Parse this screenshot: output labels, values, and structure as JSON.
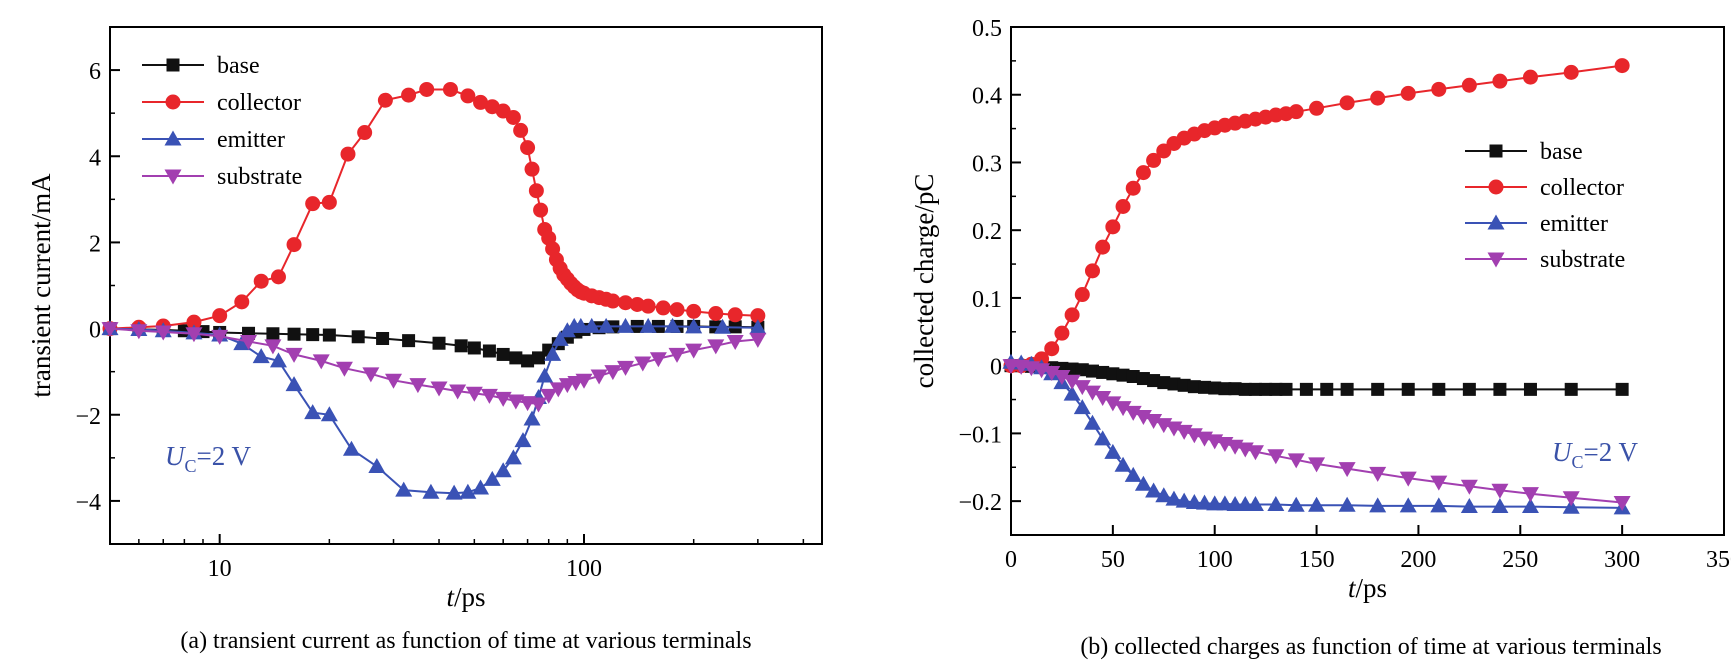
{
  "colors": {
    "base": "#111111",
    "collector": "#e8262b",
    "emitter": "#3a52b5",
    "substrate": "#a23fb0",
    "annotation": "#3a52a8"
  },
  "chart_data": [
    {
      "type": "line",
      "panel": "a",
      "caption": "(a) transient current as function of time at various terminals",
      "xlabel_italic": "t",
      "xlabel_unit": "/ps",
      "ylabel": "transient current/mA",
      "x_scale": "log",
      "xlim": [
        5,
        450
      ],
      "ylim": [
        -5,
        7
      ],
      "x_ticks": [
        10,
        100
      ],
      "x_tick_labels": [
        "10",
        "100"
      ],
      "y_ticks": [
        -4,
        -2,
        0,
        2,
        4,
        6
      ],
      "y_tick_labels": [
        "−4",
        "−2",
        "0",
        "2",
        "4",
        "6"
      ],
      "legend_position": "top-left",
      "annotation": {
        "main": "U",
        "sub": "C",
        "rest": "=2 V"
      },
      "series": [
        {
          "name": "base",
          "marker": "square",
          "x": [
            5,
            6,
            7,
            8,
            9,
            10,
            12,
            14,
            16,
            18,
            20,
            24,
            28,
            33,
            40,
            46,
            50,
            55,
            60,
            65,
            70,
            75,
            80,
            85,
            90,
            95,
            100,
            110,
            120,
            140,
            160,
            180,
            200,
            230,
            260,
            300
          ],
          "y": [
            0,
            -0.02,
            -0.03,
            -0.05,
            -0.07,
            -0.09,
            -0.11,
            -0.12,
            -0.13,
            -0.14,
            -0.15,
            -0.19,
            -0.23,
            -0.28,
            -0.34,
            -0.4,
            -0.45,
            -0.52,
            -0.6,
            -0.68,
            -0.75,
            -0.68,
            -0.5,
            -0.35,
            -0.2,
            -0.08,
            -0.02,
            0.02,
            0.04,
            0.05,
            0.05,
            0.05,
            0.05,
            0.04,
            0.04,
            0.03
          ]
        },
        {
          "name": "collector",
          "marker": "circle",
          "x": [
            5,
            6,
            7,
            8.5,
            10,
            11.5,
            13,
            14.5,
            16,
            18,
            20,
            22.5,
            25,
            28.5,
            33,
            37,
            43,
            48,
            52,
            56,
            60,
            64,
            67,
            70,
            72,
            74,
            76,
            78,
            80,
            82,
            84,
            86,
            88,
            90,
            92,
            94,
            96,
            98,
            100,
            105,
            110,
            115,
            120,
            130,
            140,
            150,
            165,
            180,
            200,
            230,
            260,
            300
          ],
          "y": [
            0,
            0.03,
            0.06,
            0.15,
            0.3,
            0.62,
            1.1,
            1.2,
            1.95,
            2.9,
            2.93,
            4.05,
            4.55,
            5.3,
            5.42,
            5.55,
            5.55,
            5.4,
            5.25,
            5.15,
            5.05,
            4.9,
            4.6,
            4.2,
            3.7,
            3.2,
            2.75,
            2.3,
            2.1,
            1.85,
            1.6,
            1.4,
            1.25,
            1.15,
            1.05,
            0.97,
            0.9,
            0.85,
            0.82,
            0.76,
            0.72,
            0.68,
            0.64,
            0.6,
            0.56,
            0.52,
            0.48,
            0.44,
            0.4,
            0.35,
            0.32,
            0.3
          ]
        },
        {
          "name": "emitter",
          "marker": "triangle-up",
          "x": [
            5,
            6,
            7,
            8.5,
            10,
            11.5,
            13,
            14.5,
            16,
            18,
            20,
            23,
            27,
            32,
            38,
            44,
            48,
            52,
            56,
            60,
            64,
            68,
            72,
            75,
            78,
            82,
            86,
            90,
            94,
            98,
            105,
            115,
            130,
            150,
            175,
            200,
            240,
            300
          ],
          "y": [
            0,
            -0.02,
            -0.05,
            -0.1,
            -0.15,
            -0.35,
            -0.65,
            -0.75,
            -1.3,
            -1.95,
            -2.0,
            -2.8,
            -3.2,
            -3.75,
            -3.8,
            -3.82,
            -3.8,
            -3.7,
            -3.5,
            -3.3,
            -3.0,
            -2.6,
            -2.1,
            -1.6,
            -1.1,
            -0.6,
            -0.25,
            -0.05,
            0.05,
            0.05,
            0.05,
            0.05,
            0.05,
            0.05,
            0.05,
            0.04,
            0.03,
            0.02
          ]
        },
        {
          "name": "substrate",
          "marker": "triangle-down",
          "x": [
            5,
            6,
            7,
            8.5,
            10,
            12,
            14,
            16,
            19,
            22,
            26,
            30,
            35,
            40,
            45,
            50,
            55,
            60,
            65,
            70,
            75,
            80,
            85,
            90,
            95,
            100,
            110,
            120,
            130,
            145,
            160,
            180,
            200,
            230,
            260,
            300
          ],
          "y": [
            0,
            -0.05,
            -0.08,
            -0.12,
            -0.18,
            -0.3,
            -0.4,
            -0.6,
            -0.75,
            -0.92,
            -1.05,
            -1.2,
            -1.3,
            -1.38,
            -1.45,
            -1.5,
            -1.55,
            -1.62,
            -1.68,
            -1.72,
            -1.75,
            -1.55,
            -1.4,
            -1.3,
            -1.25,
            -1.2,
            -1.1,
            -1.0,
            -0.9,
            -0.8,
            -0.7,
            -0.6,
            -0.5,
            -0.4,
            -0.3,
            -0.25
          ]
        }
      ]
    },
    {
      "type": "line",
      "panel": "b",
      "caption": "(b) collected charges as function of time at various terminals",
      "xlabel_italic": "t",
      "xlabel_unit": "/ps",
      "ylabel": "collected charge/pC",
      "x_scale": "linear",
      "xlim": [
        0,
        350
      ],
      "ylim": [
        -0.25,
        0.5
      ],
      "x_ticks": [
        0,
        50,
        100,
        150,
        200,
        250,
        300,
        350
      ],
      "x_tick_labels": [
        "0",
        "50",
        "100",
        "150",
        "200",
        "250",
        "300",
        "350"
      ],
      "y_ticks": [
        -0.2,
        -0.1,
        0,
        0.1,
        0.2,
        0.3,
        0.4,
        0.5
      ],
      "y_tick_labels": [
        "−0.2",
        "−0.1",
        "0",
        "0.1",
        "0.2",
        "0.3",
        "0.4",
        "0.5"
      ],
      "legend_position": "right",
      "annotation": {
        "main": "U",
        "sub": "C",
        "rest": "=2 V"
      },
      "series": [
        {
          "name": "base",
          "marker": "square",
          "x": [
            0,
            5,
            10,
            15,
            20,
            25,
            30,
            35,
            40,
            45,
            50,
            55,
            60,
            65,
            70,
            75,
            80,
            85,
            90,
            95,
            100,
            105,
            110,
            115,
            120,
            125,
            130,
            135,
            145,
            155,
            165,
            180,
            195,
            210,
            225,
            240,
            255,
            275,
            300
          ],
          "y": [
            0,
            0,
            -0.001,
            -0.002,
            -0.003,
            -0.004,
            -0.005,
            -0.006,
            -0.008,
            -0.01,
            -0.012,
            -0.014,
            -0.016,
            -0.019,
            -0.022,
            -0.025,
            -0.027,
            -0.029,
            -0.031,
            -0.032,
            -0.033,
            -0.034,
            -0.034,
            -0.035,
            -0.035,
            -0.035,
            -0.035,
            -0.035,
            -0.035,
            -0.035,
            -0.035,
            -0.035,
            -0.035,
            -0.035,
            -0.035,
            -0.035,
            -0.035,
            -0.035,
            -0.035
          ]
        },
        {
          "name": "collector",
          "marker": "circle",
          "x": [
            0,
            5,
            10,
            15,
            20,
            25,
            30,
            35,
            40,
            45,
            50,
            55,
            60,
            65,
            70,
            75,
            80,
            85,
            90,
            95,
            100,
            105,
            110,
            115,
            120,
            125,
            130,
            135,
            140,
            150,
            165,
            180,
            195,
            210,
            225,
            240,
            255,
            275,
            300
          ],
          "y": [
            0,
            0,
            0.002,
            0.01,
            0.025,
            0.048,
            0.075,
            0.105,
            0.14,
            0.175,
            0.205,
            0.235,
            0.262,
            0.285,
            0.303,
            0.317,
            0.328,
            0.336,
            0.342,
            0.347,
            0.351,
            0.355,
            0.358,
            0.361,
            0.364,
            0.367,
            0.37,
            0.372,
            0.375,
            0.38,
            0.388,
            0.395,
            0.402,
            0.408,
            0.414,
            0.42,
            0.426,
            0.433,
            0.443
          ]
        },
        {
          "name": "emitter",
          "marker": "triangle-up",
          "x": [
            0,
            5,
            10,
            15,
            20,
            25,
            30,
            35,
            40,
            45,
            50,
            55,
            60,
            65,
            70,
            75,
            80,
            85,
            90,
            95,
            100,
            105,
            110,
            115,
            120,
            130,
            140,
            150,
            165,
            180,
            195,
            210,
            225,
            240,
            255,
            275,
            300
          ],
          "y": [
            0.005,
            0.004,
            0.002,
            -0.003,
            -0.012,
            -0.025,
            -0.042,
            -0.062,
            -0.085,
            -0.108,
            -0.128,
            -0.147,
            -0.162,
            -0.175,
            -0.185,
            -0.192,
            -0.197,
            -0.2,
            -0.202,
            -0.203,
            -0.204,
            -0.204,
            -0.205,
            -0.205,
            -0.205,
            -0.205,
            -0.206,
            -0.206,
            -0.206,
            -0.207,
            -0.207,
            -0.207,
            -0.208,
            -0.208,
            -0.208,
            -0.209,
            -0.21
          ]
        },
        {
          "name": "substrate",
          "marker": "triangle-down",
          "x": [
            0,
            5,
            10,
            15,
            20,
            25,
            30,
            35,
            40,
            45,
            50,
            55,
            60,
            65,
            70,
            75,
            80,
            85,
            90,
            95,
            100,
            105,
            110,
            115,
            120,
            130,
            140,
            150,
            165,
            180,
            195,
            210,
            225,
            240,
            255,
            275,
            300
          ],
          "y": [
            0,
            -0.001,
            -0.003,
            -0.006,
            -0.01,
            -0.016,
            -0.023,
            -0.031,
            -0.039,
            -0.047,
            -0.055,
            -0.062,
            -0.069,
            -0.075,
            -0.081,
            -0.087,
            -0.092,
            -0.097,
            -0.102,
            -0.107,
            -0.111,
            -0.115,
            -0.119,
            -0.123,
            -0.127,
            -0.133,
            -0.139,
            -0.145,
            -0.152,
            -0.159,
            -0.166,
            -0.172,
            -0.178,
            -0.184,
            -0.189,
            -0.195,
            -0.202
          ]
        }
      ]
    }
  ]
}
